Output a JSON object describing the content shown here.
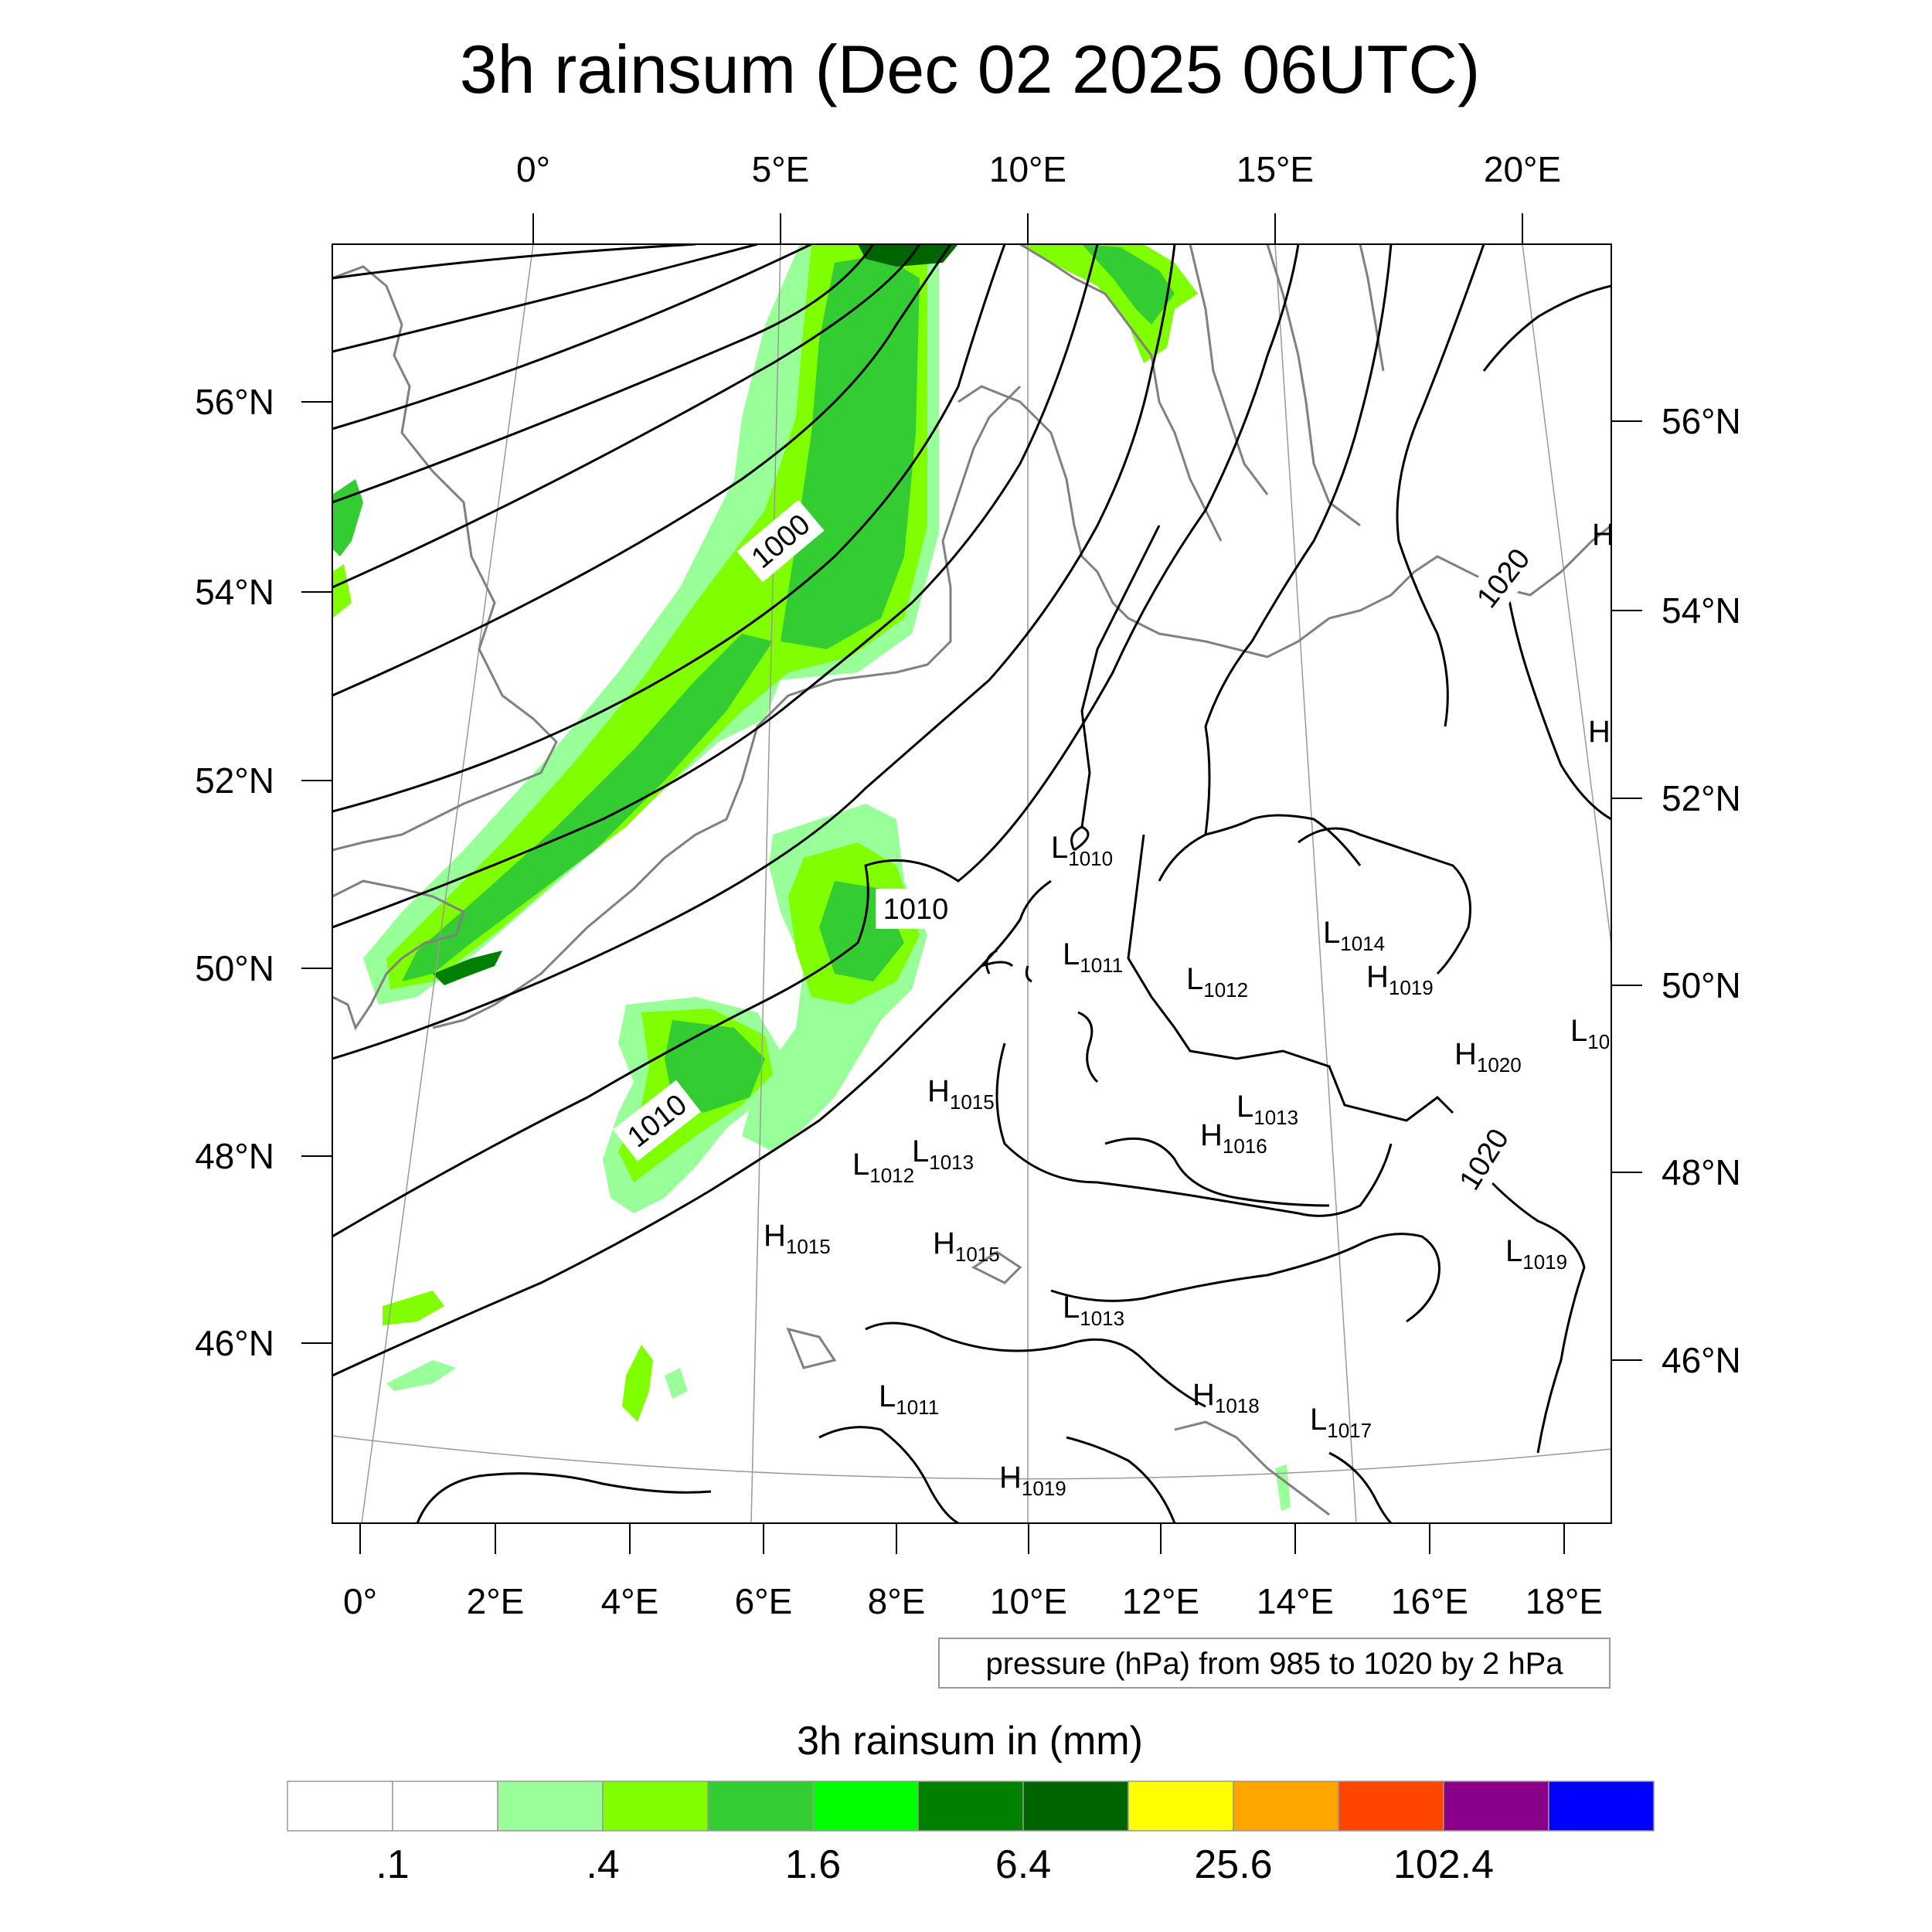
{
  "title": "3h rainsum (Dec 02 2025 06UTC)",
  "map": {
    "top_lon_labels": [
      "0°",
      "5°E",
      "10°E",
      "15°E",
      "20°E"
    ],
    "bottom_lon_labels": [
      "0°",
      "2°E",
      "4°E",
      "6°E",
      "8°E",
      "10°E",
      "12°E",
      "14°E",
      "16°E",
      "18°E"
    ],
    "left_lat_labels": [
      "56°N",
      "54°N",
      "52°N",
      "50°N",
      "48°N",
      "46°N"
    ],
    "right_lat_labels": [
      "56°N",
      "54°N",
      "52°N",
      "50°N",
      "48°N",
      "46°N"
    ],
    "contour_labels": [
      "1000",
      "1010",
      "1010",
      "1020",
      "1020"
    ],
    "pressure_centers": [
      {
        "type": "L",
        "value": "1010"
      },
      {
        "type": "L",
        "value": "1011"
      },
      {
        "type": "L",
        "value": "1012"
      },
      {
        "type": "L",
        "value": "1014"
      },
      {
        "type": "H",
        "value": "1019"
      },
      {
        "type": "H",
        "value": "1020"
      },
      {
        "type": "L",
        "value": "10"
      },
      {
        "type": "H",
        "value": "1015"
      },
      {
        "type": "L",
        "value": "1013"
      },
      {
        "type": "H",
        "value": "1016"
      },
      {
        "type": "L",
        "value": "1012"
      },
      {
        "type": "L",
        "value": "1013"
      },
      {
        "type": "H",
        "value": "1015"
      },
      {
        "type": "H",
        "value": "1015"
      },
      {
        "type": "L",
        "value": "1019"
      },
      {
        "type": "L",
        "value": "1013"
      },
      {
        "type": "L",
        "value": "1011"
      },
      {
        "type": "H",
        "value": "1018"
      },
      {
        "type": "L",
        "value": "1017"
      },
      {
        "type": "H",
        "value": "1019"
      },
      {
        "type": "H",
        "value": ""
      },
      {
        "type": "H",
        "value": ""
      }
    ],
    "contour_info": "pressure (hPa) from 985 to 1020 by 2 hPa",
    "precip_colors": {
      "light": "#99ff99",
      "lime": "#80ff00",
      "medium": "#33cc33",
      "bright": "#00ff00",
      "dark": "#008000",
      "darkest": "#006400"
    }
  },
  "colorbar": {
    "title": "3h rainsum in (mm)",
    "colors": [
      "#ffffff",
      "#ffffff",
      "#99ff99",
      "#80ff00",
      "#33cc33",
      "#00ff00",
      "#008000",
      "#006400",
      "#ffff00",
      "#ffa500",
      "#ff4500",
      "#8b008b",
      "#0000ff"
    ],
    "labels": [
      ".1",
      ".4",
      "1.6",
      "6.4",
      "25.6",
      "102.4"
    ]
  }
}
